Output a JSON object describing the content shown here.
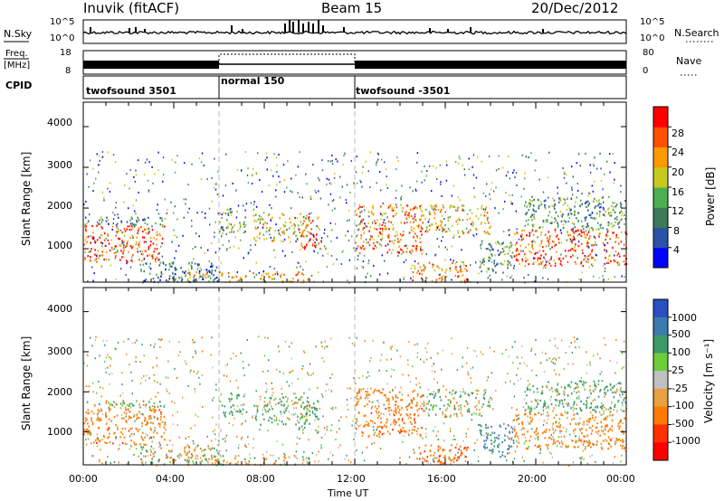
{
  "header": {
    "station": "Inuvik (fitACF)",
    "beam": "Beam 15",
    "date": "20/Dec/2012"
  },
  "top_panels": {
    "nsky_label": "N.Sky",
    "nsky_tick_top": "10^5",
    "nsky_tick_bottom": "10^0",
    "nsearch_label": "N.Search",
    "nsearch_tick_top": "10^5",
    "nsearch_tick_bottom": "10^0",
    "freq_label_1": "Freq.",
    "freq_label_2": "[MHz]",
    "freq_tick_top": "18",
    "freq_tick_bottom": "8",
    "nave_label": "Nave",
    "nave_tick_top": "80",
    "nave_tick_bottom": "0",
    "cpid_label": "CPID",
    "cpid_segments": [
      {
        "label": "twofsound 3501",
        "start_hour": 0,
        "end_hour": 6
      },
      {
        "label": "normal 150",
        "start_hour": 6,
        "end_hour": 12
      },
      {
        "label": "twofsound -3501",
        "start_hour": 12,
        "end_hour": 24
      }
    ]
  },
  "power_panel": {
    "ylabel": "Slant Range [km]",
    "yticks": [
      "1000",
      "2000",
      "3000",
      "4000"
    ],
    "colorbar_label": "Power [dB]",
    "colorbar_ticks": [
      "4",
      "8",
      "12",
      "16",
      "20",
      "24",
      "28"
    ],
    "colors": [
      "#0000ff",
      "#2a52a8",
      "#3c7a5a",
      "#4caf50",
      "#c8c820",
      "#ff9a00",
      "#ff5000",
      "#ff0000"
    ]
  },
  "velocity_panel": {
    "ylabel": "Slant Range [km]",
    "yticks": [
      "1000",
      "2000",
      "3000",
      "4000"
    ],
    "colorbar_label": "Velocity [m s⁻¹]",
    "colorbar_ticks": [
      "1000",
      "500",
      "100",
      "25",
      "-25",
      "-100",
      "-500",
      "-1000"
    ],
    "colors": [
      "#2a4fbf",
      "#3a7bb0",
      "#3c9a6a",
      "#6ccc3c",
      "#c0c0c0",
      "#e8a040",
      "#ff7a00",
      "#ff3000",
      "#ff0000"
    ]
  },
  "x_axis": {
    "label": "Time UT",
    "ticks": [
      "00:00",
      "04:00",
      "08:00",
      "12:00",
      "16:00",
      "20:00",
      "00:00"
    ]
  },
  "chart_data": {
    "type": "heatmap",
    "title": "Inuvik (fitACF)",
    "subtitle": "Beam 15",
    "xlabel": "Time UT",
    "ylabel": "Slant Range [km]",
    "xlim_hours": [
      0,
      24
    ],
    "ylim_km": [
      180,
      4600
    ],
    "power_db_range": [
      0,
      30
    ],
    "velocity_range": [
      -1000,
      1000
    ],
    "scatter_regions": [
      {
        "t0": 0.0,
        "t1": 3.6,
        "r0": 700,
        "r1": 1600,
        "power": 26,
        "velocity": -300
      },
      {
        "t0": 0.0,
        "t1": 3.6,
        "r0": 1600,
        "r1": 1800,
        "power": 10,
        "velocity": 50
      },
      {
        "t0": 2.5,
        "t1": 6.0,
        "r0": 200,
        "r1": 700,
        "power": 9,
        "velocity": 0
      },
      {
        "t0": 4.5,
        "t1": 10.0,
        "r0": 200,
        "r1": 450,
        "power": 22,
        "velocity": -10
      },
      {
        "t0": 6.0,
        "t1": 7.2,
        "r0": 1400,
        "r1": 2000,
        "power": 14,
        "velocity": 200
      },
      {
        "t0": 7.5,
        "t1": 10.0,
        "r0": 1200,
        "r1": 1900,
        "power": 18,
        "velocity": 150
      },
      {
        "t0": 9.5,
        "t1": 10.5,
        "r0": 1000,
        "r1": 1800,
        "power": 26,
        "velocity": 200
      },
      {
        "t0": 12.0,
        "t1": 15.0,
        "r0": 900,
        "r1": 2100,
        "power": 24,
        "velocity": -300
      },
      {
        "t0": 14.5,
        "t1": 17.0,
        "r0": 200,
        "r1": 700,
        "power": 22,
        "velocity": -400
      },
      {
        "t0": 15.0,
        "t1": 18.0,
        "r0": 1400,
        "r1": 2100,
        "power": 20,
        "velocity": 100
      },
      {
        "t0": 17.5,
        "t1": 19.0,
        "r0": 400,
        "r1": 1200,
        "power": 12,
        "velocity": 600
      },
      {
        "t0": 19.0,
        "t1": 24.0,
        "r0": 600,
        "r1": 1500,
        "power": 26,
        "velocity": -200
      },
      {
        "t0": 19.5,
        "t1": 24.0,
        "r0": 1500,
        "r1": 2300,
        "power": 12,
        "velocity": 150
      }
    ]
  }
}
